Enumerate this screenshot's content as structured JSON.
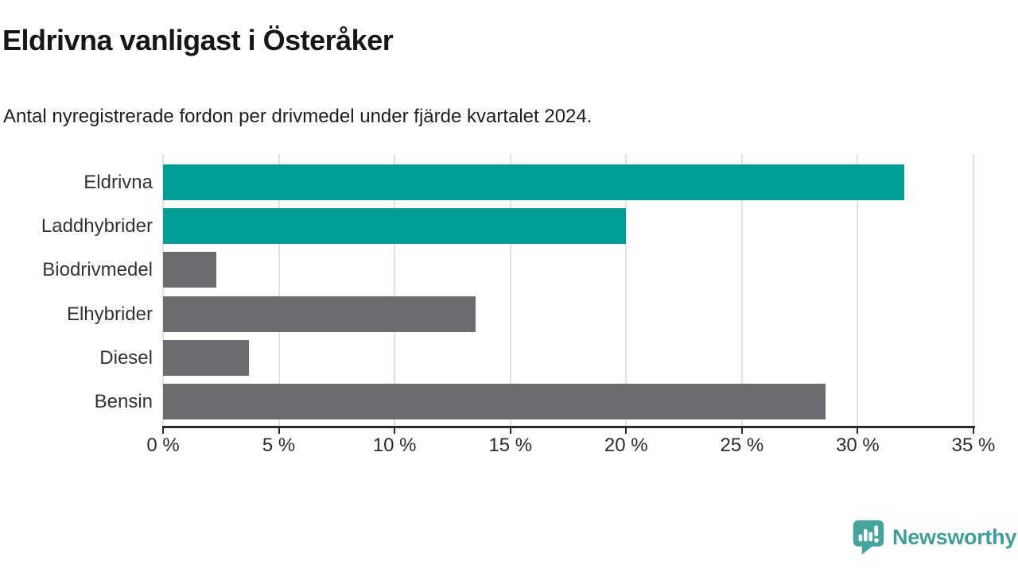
{
  "header": {
    "title": "Eldrivna vanligast i Österåker",
    "subtitle": "Antal nyregistrerade fordon per drivmedel under fjärde kvartalet 2024."
  },
  "chart_data": {
    "type": "bar",
    "orientation": "horizontal",
    "title": "Eldrivna vanligast i Österåker",
    "subtitle": "Antal nyregistrerade fordon per drivmedel under fjärde kvartalet 2024.",
    "categories": [
      "Eldrivna",
      "Laddhybrider",
      "Biodrivmedel",
      "Elhybrider",
      "Diesel",
      "Bensin"
    ],
    "values": [
      32.0,
      20.0,
      2.3,
      13.5,
      3.7,
      28.6
    ],
    "unit": "%",
    "bar_colors": [
      "#009e96",
      "#009e96",
      "#6c6b70",
      "#6c6b70",
      "#6c6b70",
      "#6c6b70"
    ],
    "xlabel": "",
    "ylabel": "",
    "xlim": [
      0,
      35
    ],
    "x_tick_values": [
      0,
      5,
      10,
      15,
      20,
      25,
      30,
      35
    ],
    "x_tick_labels": [
      "0 %",
      "5 %",
      "10 %",
      "15 %",
      "20 %",
      "25 %",
      "30 %",
      "35 %"
    ],
    "grid": "vertical-only",
    "legend": "none"
  },
  "colors": {
    "highlight": "#009e96",
    "neutral": "#6c6b70",
    "gridline": "#e2e2e2",
    "axis": "#2b2b2b",
    "text": "#333333",
    "brand": "#3f9f98",
    "icon": "#46a49e"
  },
  "footer": {
    "brand": "Newsworthy"
  }
}
